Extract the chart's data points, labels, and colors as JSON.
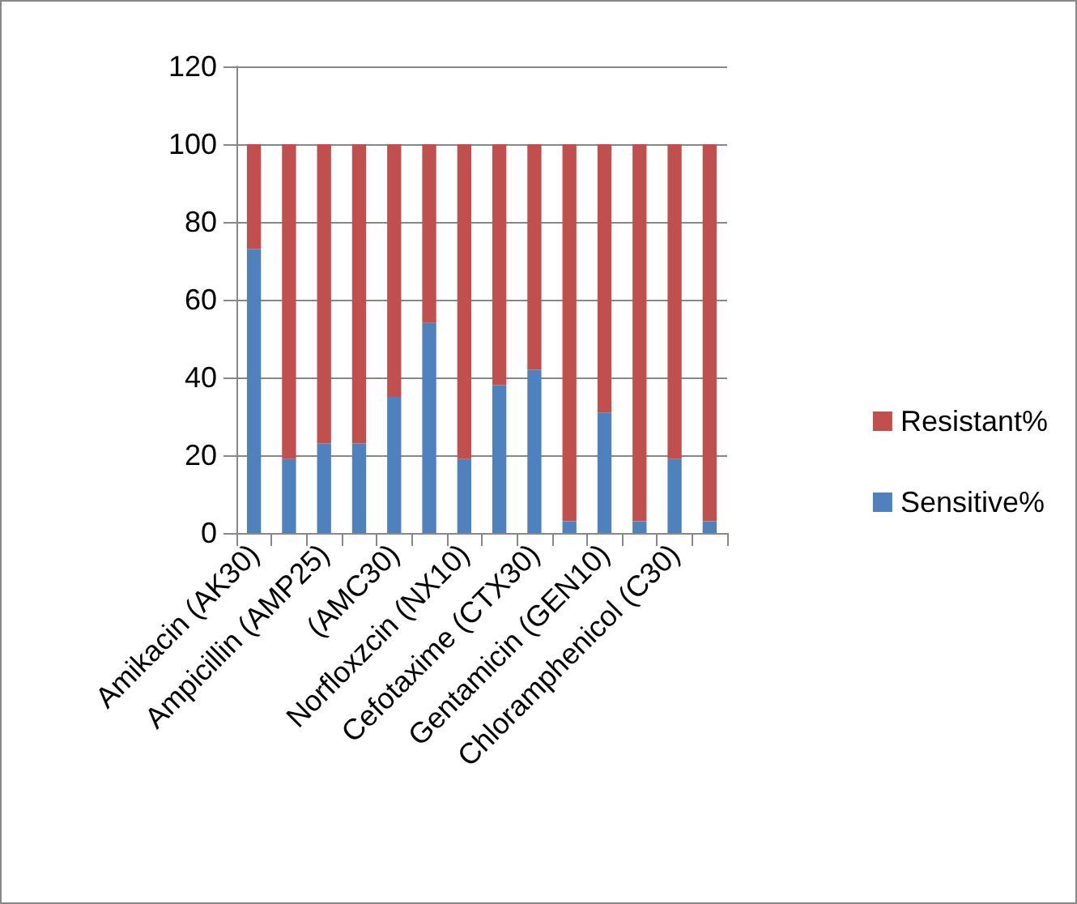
{
  "chart_data": {
    "type": "bar",
    "stacked": true,
    "categories": [
      "Amikacin (AK30)",
      null,
      "Ampicillin (AMP25)",
      null,
      "(AMC30)",
      null,
      "Norfloxzcin (NX10)",
      null,
      "Cefotaxime (CTX30)",
      null,
      "Gentamicin (GEN10)",
      null,
      "Chloramphenicol (C30)",
      null
    ],
    "series": [
      {
        "name": "Sensitive%",
        "color": "#4f81bd",
        "values": [
          73,
          19,
          23,
          23,
          35,
          54,
          19,
          38,
          42,
          3,
          31,
          3,
          19,
          3
        ]
      },
      {
        "name": "Resistant%",
        "color": "#c0504d",
        "values": [
          27,
          81,
          77,
          77,
          65,
          46,
          81,
          62,
          58,
          97,
          69,
          97,
          81,
          97
        ]
      }
    ],
    "ylim": [
      0,
      120
    ],
    "yticks": [
      0,
      20,
      40,
      60,
      80,
      100,
      120
    ],
    "grid": "y",
    "legend": "right"
  }
}
